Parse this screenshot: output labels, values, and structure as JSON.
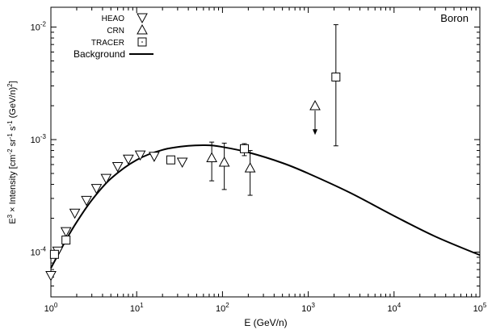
{
  "chart_data": {
    "type": "scatter",
    "panel_label": "Boron",
    "xlabel": "E (GeV/n)",
    "ylabel_parts": [
      "E",
      "3",
      " × Intensity [cm",
      "-2",
      " sr",
      "-1",
      " s",
      "-1",
      " (GeV/n)",
      "2",
      "]"
    ],
    "x_scale": "log",
    "y_scale": "log",
    "xlim": [
      1,
      100000
    ],
    "ylim": [
      4e-05,
      0.015
    ],
    "x_ticks": [
      {
        "value": 1,
        "base": "10",
        "exp": "0"
      },
      {
        "value": 10,
        "base": "10",
        "exp": "1"
      },
      {
        "value": 100,
        "base": "10",
        "exp": "2"
      },
      {
        "value": 1000,
        "base": "10",
        "exp": "3"
      },
      {
        "value": 10000,
        "base": "10",
        "exp": "4"
      },
      {
        "value": 100000,
        "base": "10",
        "exp": "5"
      }
    ],
    "y_ticks": [
      {
        "value": 0.0001,
        "base": "10",
        "exp": "-4"
      },
      {
        "value": 0.001,
        "base": "10",
        "exp": "-3"
      },
      {
        "value": 0.01,
        "base": "10",
        "exp": "-2"
      }
    ],
    "legend": {
      "placement": "top-left",
      "entries": [
        {
          "label": "HEAO",
          "marker": "triangle-down"
        },
        {
          "label": "CRN",
          "marker": "triangle-up"
        },
        {
          "label": "TRACER",
          "marker": "square"
        },
        {
          "label": "Background",
          "marker": "line"
        }
      ]
    },
    "series": [
      {
        "name": "HEAO",
        "marker": "triangle-down",
        "points": [
          {
            "x": 1.0,
            "y": 6.2e-05
          },
          {
            "x": 1.2,
            "y": 0.000102
          },
          {
            "x": 1.5,
            "y": 0.000152
          },
          {
            "x": 1.9,
            "y": 0.000222
          },
          {
            "x": 2.6,
            "y": 0.000288
          },
          {
            "x": 3.4,
            "y": 0.000368
          },
          {
            "x": 4.4,
            "y": 0.000452
          },
          {
            "x": 6.0,
            "y": 0.000575
          },
          {
            "x": 8.0,
            "y": 0.00067
          },
          {
            "x": 11.0,
            "y": 0.00073
          },
          {
            "x": 16.0,
            "y": 0.00071
          },
          {
            "x": 34.0,
            "y": 0.00063
          }
        ]
      },
      {
        "name": "CRN",
        "marker": "triangle-up",
        "points": [
          {
            "x": 75,
            "y": 0.00069,
            "ylo": 0.00043,
            "yhi": 0.00095
          },
          {
            "x": 105,
            "y": 0.00063,
            "ylo": 0.00036,
            "yhi": 0.00093
          },
          {
            "x": 210,
            "y": 0.00056,
            "ylo": 0.00032,
            "yhi": 0.0008
          },
          {
            "x": 1200,
            "y": 0.002,
            "upper_limit": true,
            "arrow_to": 0.0011
          }
        ]
      },
      {
        "name": "TRACER",
        "marker": "square",
        "points": [
          {
            "x": 1.1,
            "y": 9.55e-05
          },
          {
            "x": 1.5,
            "y": 0.000128
          },
          {
            "x": 25,
            "y": 0.00066
          },
          {
            "x": 180,
            "y": 0.00083,
            "ylo": 0.00072,
            "yhi": 0.00092
          },
          {
            "x": 2100,
            "y": 0.0036,
            "ylo": 0.00088,
            "yhi": 0.0105
          }
        ]
      }
    ],
    "background_curve": {
      "name": "Background",
      "points": [
        {
          "x": 1,
          "y": 7.2e-05
        },
        {
          "x": 1.5,
          "y": 0.000128
        },
        {
          "x": 2,
          "y": 0.000185
        },
        {
          "x": 3,
          "y": 0.00029
        },
        {
          "x": 5,
          "y": 0.00045
        },
        {
          "x": 10,
          "y": 0.00066
        },
        {
          "x": 20,
          "y": 0.00081
        },
        {
          "x": 40,
          "y": 0.00088
        },
        {
          "x": 70,
          "y": 0.00089
        },
        {
          "x": 100,
          "y": 0.00086
        },
        {
          "x": 200,
          "y": 0.00077
        },
        {
          "x": 500,
          "y": 0.00062
        },
        {
          "x": 1000,
          "y": 0.0005
        },
        {
          "x": 3000,
          "y": 0.00034
        },
        {
          "x": 10000,
          "y": 0.00021
        },
        {
          "x": 30000,
          "y": 0.000138
        },
        {
          "x": 100000,
          "y": 9.4e-05
        }
      ]
    }
  }
}
